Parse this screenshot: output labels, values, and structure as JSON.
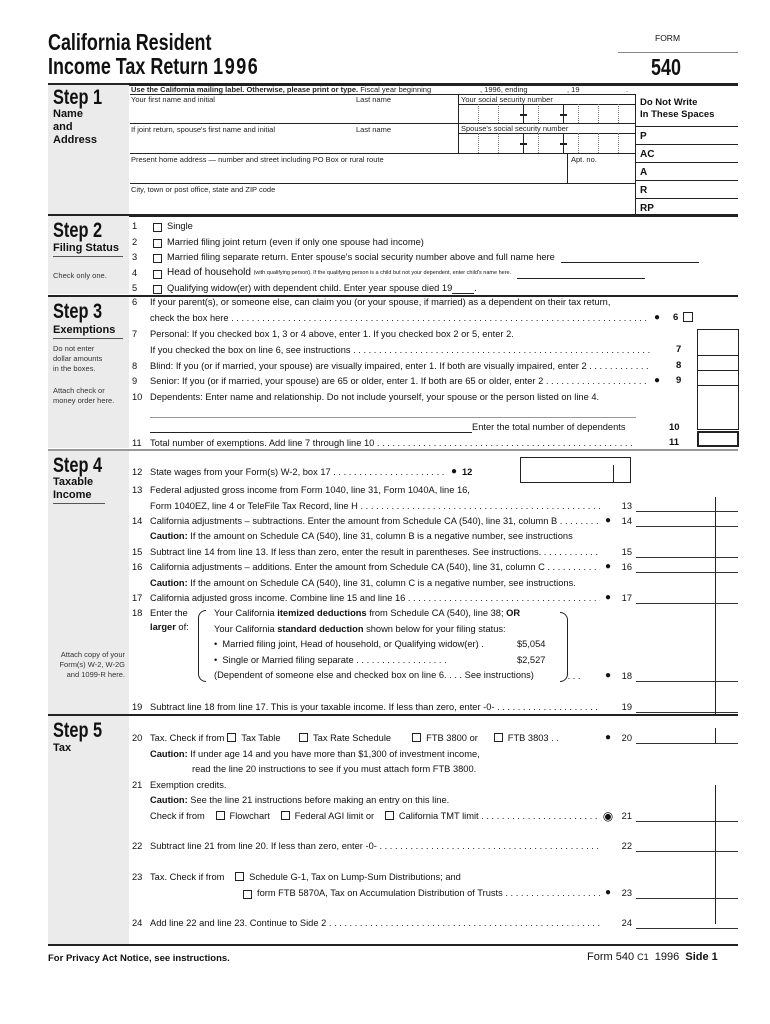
{
  "header": {
    "title_line1": "California Resident",
    "title_line2": "Income Tax Return",
    "year": "1996",
    "form_label": "FORM",
    "form_number": "540"
  },
  "step1": {
    "step": "Step 1",
    "section": "Name\nand\nAddress",
    "mailing_instruction": "Use the California mailing label. Otherwise, please print or type.",
    "fiscal_year": "Fiscal year beginning",
    "fiscal_1996": ", 1996, ending",
    "fiscal_19": ", 19",
    "fiscal_end": ".",
    "first_name": "Your first name and initial",
    "last_name": "Last name",
    "ssn": "Your social security number",
    "spouse_first": "If joint return, spouse's first name and initial",
    "spouse_last": "Last name",
    "spouse_ssn": "Spouse's social security number",
    "address": "Present home address — number and street including PO Box or rural route",
    "apt": "Apt. no.",
    "city": "City, town or post office, state and ZIP code",
    "do_not_write": "Do Not Write\nIn These Spaces",
    "codes": [
      "P",
      "AC",
      "A",
      "R",
      "RP"
    ]
  },
  "step2": {
    "step": "Step 2",
    "section": "Filing Status",
    "note": "Check only one.",
    "options": [
      {
        "num": "1",
        "text": "Single"
      },
      {
        "num": "2",
        "text": "Married filing joint return (even if only one spouse had income)"
      },
      {
        "num": "3",
        "text": "Married filing separate return. Enter spouse's social security number above and full name here"
      },
      {
        "num": "4",
        "text": "Head of household",
        "small": "(with qualifying person). If the qualifying person is a child but not your dependent, enter child's name here."
      },
      {
        "num": "5",
        "text": "Qualifying widow(er) with dependent child. Enter year spouse died 19",
        "end": "."
      }
    ]
  },
  "step3": {
    "step": "Step 3",
    "section": "Exemptions",
    "note1": "Do not enter\ndollar amounts\nin the boxes.",
    "note2": "Attach check or\nmoney order here.",
    "l6a": "If your parent(s), or someone else, can claim you (or your spouse, if married) as a dependent on their tax return,",
    "l6b": "check the box here",
    "l7a": "Personal: If you checked box 1, 3 or 4 above, enter 1. If you checked box 2 or 5, enter 2.",
    "l7b": "If you checked the box on line 6, see instructions",
    "l8": "Blind: If you (or if married, your spouse) are visually impaired, enter 1. If both are visually impaired, enter 2",
    "l9": "Senior: If you (or if married, your spouse) are 65 or older, enter 1. If both are 65 or older, enter 2",
    "l10": "Dependents: Enter name and relationship. Do not include yourself, your spouse or the person listed on line 4.",
    "l10b": "Enter the total number of dependents",
    "l11": "Total number of exemptions. Add line 7 through line 10",
    "nums": [
      "6",
      "7",
      "8",
      "9",
      "10",
      "11"
    ]
  },
  "step4": {
    "step": "Step 4",
    "section": "Taxable\nIncome",
    "note": "Attach copy of your\nForm(s) W-2, W-2G\nand 1099-R here.",
    "l12": "State wages from your Form(s) W-2, box 17",
    "l13a": "Federal adjusted gross income from Form 1040, line 31, Form 1040A, line 16,",
    "l13b": "Form 1040EZ, line 4 or TeleFile Tax Record, line H",
    "l14": "California adjustments – subtractions. Enter the amount from Schedule CA (540), line 31, column B",
    "l14c_bold": "Caution:",
    "l14c": " If the amount on Schedule CA (540), line 31, column B is a negative number, see instructions",
    "l15": "Subtract line 14 from line 13. If less than zero, enter the result in parentheses. See instructions.",
    "l16": "California adjustments – additions. Enter the amount from Schedule CA (540), line 31, column C",
    "l16c_bold": "Caution:",
    "l16c": " If the amount on Schedule CA (540), line 31, column C is a negative number, see instructions.",
    "l17": "California adjusted gross income. Combine line 15 and line 16",
    "l18_enter": "Enter the",
    "l18_larger": "larger",
    "l18_of": " of:",
    "l18_a1": "Your California ",
    "l18_a2": "itemized deductions",
    "l18_a3": " from Schedule CA (540), line 38; ",
    "l18_a4": "OR",
    "l18_b1": "Your California ",
    "l18_b2": "standard deduction",
    "l18_b3": " shown below for your filing status:",
    "l18_c": "Married filing joint, Head of household, or Qualifying widow(er) .",
    "l18_c_amt": "$5,054",
    "l18_d": "Single or Married filing separate . . . . . . . . . . . . . . . . . .",
    "l18_d_amt": "$2,527",
    "l18_e": "(Dependent of someone else and checked box on line 6. . . . See instructions)",
    "l19": "Subtract line 18 from line 17. This is your taxable income. If less than zero, enter -0-",
    "nums": [
      "12",
      "13",
      "14",
      "15",
      "16",
      "17",
      "18",
      "19"
    ]
  },
  "step5": {
    "step": "Step 5",
    "section": "Tax",
    "l20": "Tax. Check if from",
    "l20_opts": [
      "Tax Table",
      "Tax Rate Schedule",
      "FTB 3800 or",
      "FTB 3803"
    ],
    "l20c_bold": "Caution:",
    "l20c": " If under age 14 and you have more than $1,300 of investment income,",
    "l20c2": "read the line 20 instructions to see if you must attach form FTB 3800.",
    "l21": "Exemption credits.",
    "l21c_bold": "Caution:",
    "l21c": " See the line 21 instructions before making an entry on this line.",
    "l21_check": "Check if from",
    "l21_opts": [
      "Flowchart",
      "Federal AGI limit or",
      "California TMT limit"
    ],
    "l22": "Subtract line 21 from line 20. If less than zero, enter -0-",
    "l23": "Tax. Check if from",
    "l23_opts": [
      "Schedule G-1, Tax on Lump-Sum Distributions; and",
      "form FTB 5870A, Tax on Accumulation Distribution of Trusts"
    ],
    "l24": "Add line 22 and line 23. Continue to Side 2",
    "nums": [
      "20",
      "21",
      "22",
      "23",
      "24"
    ]
  },
  "footer": {
    "privacy": "For Privacy Act Notice, see instructions.",
    "form": "Form 540",
    "code": "C1",
    "year": "1996",
    "side": "Side 1"
  }
}
